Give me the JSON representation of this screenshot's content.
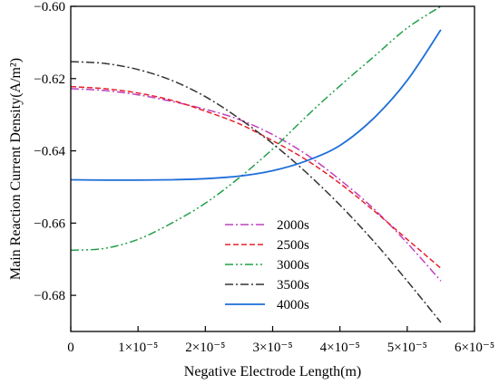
{
  "chart_data": {
    "type": "line",
    "title": "",
    "xlabel": "Negative Electrode Length(m)",
    "ylabel": "Main Reaction Current Density(A/m²)",
    "xlim": [
      0,
      6e-05
    ],
    "ylim": [
      -0.69,
      -0.6
    ],
    "x_ticks": [
      {
        "value": 0,
        "label": "0"
      },
      {
        "value": 1e-05,
        "label": "1×10⁻⁵"
      },
      {
        "value": 2e-05,
        "label": "2×10⁻⁵"
      },
      {
        "value": 3e-05,
        "label": "3×10⁻⁵"
      },
      {
        "value": 4e-05,
        "label": "4×10⁻⁵"
      },
      {
        "value": 5e-05,
        "label": "5×10⁻⁵"
      },
      {
        "value": 6e-05,
        "label": "6×10⁻⁵"
      }
    ],
    "y_ticks": [
      {
        "value": -0.6,
        "label": "−0.60"
      },
      {
        "value": -0.62,
        "label": "−0.62"
      },
      {
        "value": -0.64,
        "label": "−0.64"
      },
      {
        "value": -0.66,
        "label": "−0.66"
      },
      {
        "value": -0.68,
        "label": "−0.68"
      }
    ],
    "grid": false,
    "legend_position": "lower-center",
    "series": [
      {
        "name": "2000s",
        "color": "#bf40bf",
        "dash": "dash-dot",
        "x": [
          0,
          5e-06,
          1e-05,
          1.5e-05,
          2e-05,
          2.5e-05,
          3e-05,
          3.5e-05,
          4e-05,
          4.5e-05,
          5e-05,
          5.5e-05
        ],
        "y": [
          -0.6228,
          -0.6233,
          -0.6245,
          -0.6263,
          -0.6285,
          -0.6313,
          -0.6355,
          -0.641,
          -0.648,
          -0.656,
          -0.6655,
          -0.676
        ]
      },
      {
        "name": "2500s",
        "color": "#e8202a",
        "dash": "dash",
        "x": [
          0,
          5e-06,
          1e-05,
          1.5e-05,
          2e-05,
          2.5e-05,
          3e-05,
          3.5e-05,
          4e-05,
          4.5e-05,
          5e-05,
          5.5e-05
        ],
        "y": [
          -0.6222,
          -0.6228,
          -0.624,
          -0.626,
          -0.629,
          -0.6325,
          -0.6372,
          -0.6425,
          -0.649,
          -0.6565,
          -0.6645,
          -0.6725
        ]
      },
      {
        "name": "3000s",
        "color": "#22a04a",
        "dash": "dash-dot-dot",
        "x": [
          0,
          5e-06,
          1e-05,
          1.5e-05,
          2e-05,
          2.5e-05,
          3e-05,
          3.5e-05,
          4e-05,
          4.5e-05,
          5e-05,
          5.5e-05
        ],
        "y": [
          -0.6675,
          -0.667,
          -0.6645,
          -0.66,
          -0.6545,
          -0.6475,
          -0.6395,
          -0.6305,
          -0.622,
          -0.614,
          -0.606,
          -0.6
        ]
      },
      {
        "name": "3500s",
        "color": "#333333",
        "dash": "dash-dot",
        "x": [
          0,
          5e-06,
          1e-05,
          1.5e-05,
          2e-05,
          2.5e-05,
          3e-05,
          3.5e-05,
          4e-05,
          4.5e-05,
          5e-05,
          5.5e-05
        ],
        "y": [
          -0.6153,
          -0.6158,
          -0.6175,
          -0.6205,
          -0.625,
          -0.631,
          -0.638,
          -0.646,
          -0.655,
          -0.665,
          -0.676,
          -0.6875
        ]
      },
      {
        "name": "4000s",
        "color": "#1e6fd9",
        "dash": "solid",
        "x": [
          0,
          5e-06,
          1e-05,
          1.5e-05,
          2e-05,
          2.5e-05,
          3e-05,
          3.5e-05,
          4e-05,
          4.5e-05,
          5e-05,
          5.5e-05
        ],
        "y": [
          -0.648,
          -0.6481,
          -0.6481,
          -0.648,
          -0.6477,
          -0.647,
          -0.6455,
          -0.6428,
          -0.6385,
          -0.631,
          -0.6205,
          -0.6065
        ]
      }
    ]
  }
}
